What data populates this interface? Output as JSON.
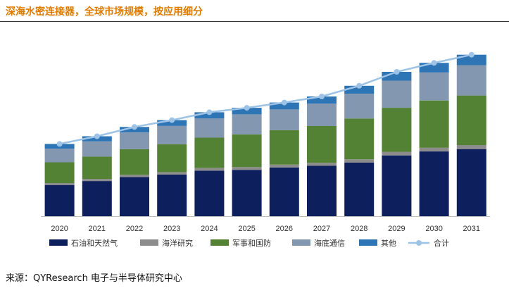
{
  "page": {
    "title": "深海水密连接器，全球市场规模，按应用细分",
    "source": "来源：QYResearch 电子与半导体研究中心"
  },
  "chart_data": {
    "type": "bar",
    "stacked": true,
    "title": "深海水密连接器，全球市场规模，按应用细分",
    "xlabel": "",
    "ylabel": "",
    "legend_position": "bottom",
    "grid": false,
    "ylim": [
      0,
      100
    ],
    "categories": [
      "2020",
      "2021",
      "2022",
      "2023",
      "2024",
      "2025",
      "2026",
      "2027",
      "2028",
      "2029",
      "2030",
      "2031"
    ],
    "series": [
      {
        "name": "石油和天然气",
        "color": "#0D1F5C",
        "values": [
          19.5,
          22,
          24.5,
          26,
          28.5,
          29,
          30.5,
          31.5,
          33.5,
          38,
          40.5,
          42
        ]
      },
      {
        "name": "海洋研究",
        "color": "#8C8C8C",
        "values": [
          1.2,
          1.3,
          1.4,
          1.5,
          1.6,
          1.7,
          1.8,
          1.9,
          2.1,
          2.3,
          2.4,
          2.5
        ]
      },
      {
        "name": "军事和国防",
        "color": "#548235",
        "values": [
          13,
          14,
          16,
          17.5,
          19,
          20.5,
          21.5,
          23,
          25.5,
          27.5,
          29.5,
          31
        ]
      },
      {
        "name": "海底通信",
        "color": "#8497B0",
        "values": [
          8.5,
          9.5,
          10.5,
          11.5,
          12,
          12.5,
          13,
          14,
          15.5,
          17,
          17.5,
          19
        ]
      },
      {
        "name": "其他",
        "color": "#2E75B6",
        "values": [
          3,
          3.2,
          3.4,
          3.6,
          3.9,
          4.1,
          4.3,
          4.5,
          5,
          5.5,
          6,
          6.5
        ]
      }
    ],
    "total_series": {
      "name": "合计",
      "color": "#9DC3E6",
      "type": "line",
      "values": [
        45.2,
        50,
        55.8,
        60.1,
        65,
        67.8,
        71.1,
        74.9,
        81.6,
        90.3,
        95.9,
        101
      ]
    }
  }
}
